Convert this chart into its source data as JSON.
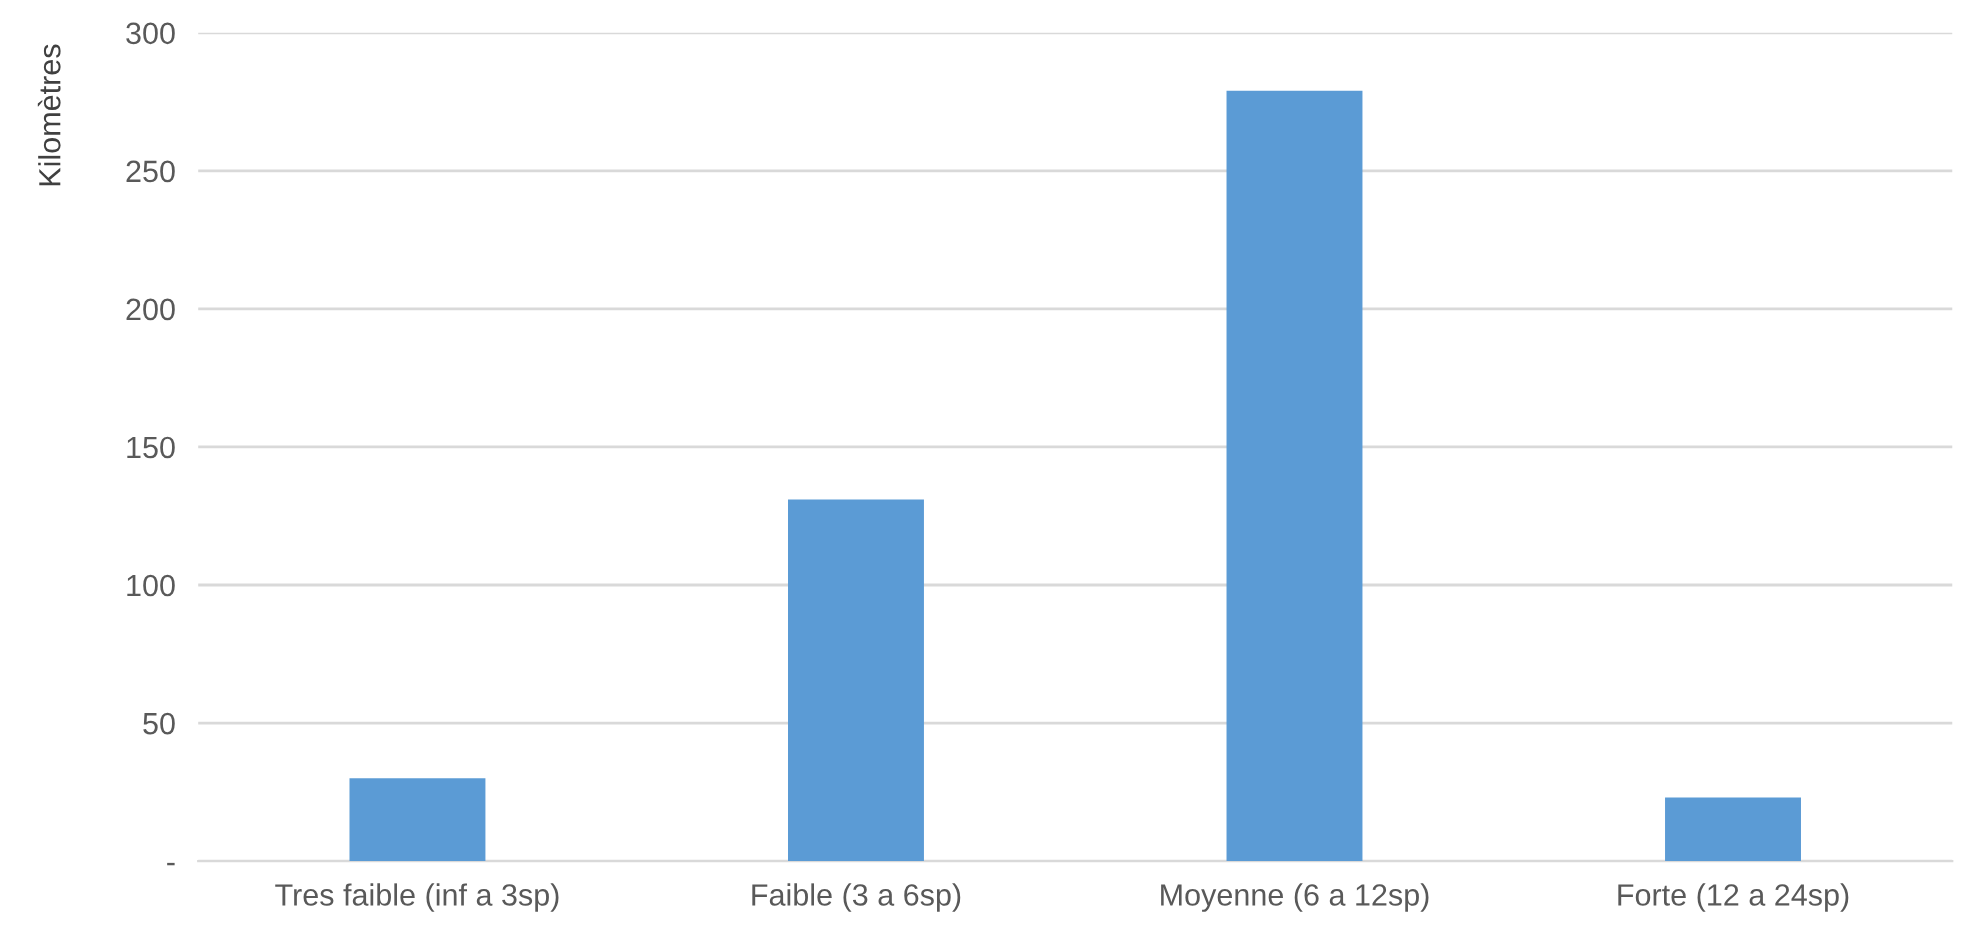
{
  "chart_data": {
    "type": "bar",
    "ylabel": "Kilomètres",
    "categories": [
      "Tres faible (inf a 3sp)",
      "Faible (3 a 6sp)",
      "Moyenne (6 a 12sp)",
      "Forte (12 a 24sp)"
    ],
    "values": [
      30,
      131,
      279,
      23
    ],
    "color": "#5b9bd5",
    "ylim": [
      0,
      300
    ],
    "yticks": [
      {
        "value": 0,
        "label": "-"
      },
      50,
      100,
      150,
      200,
      250,
      300
    ],
    "grid": "y"
  }
}
